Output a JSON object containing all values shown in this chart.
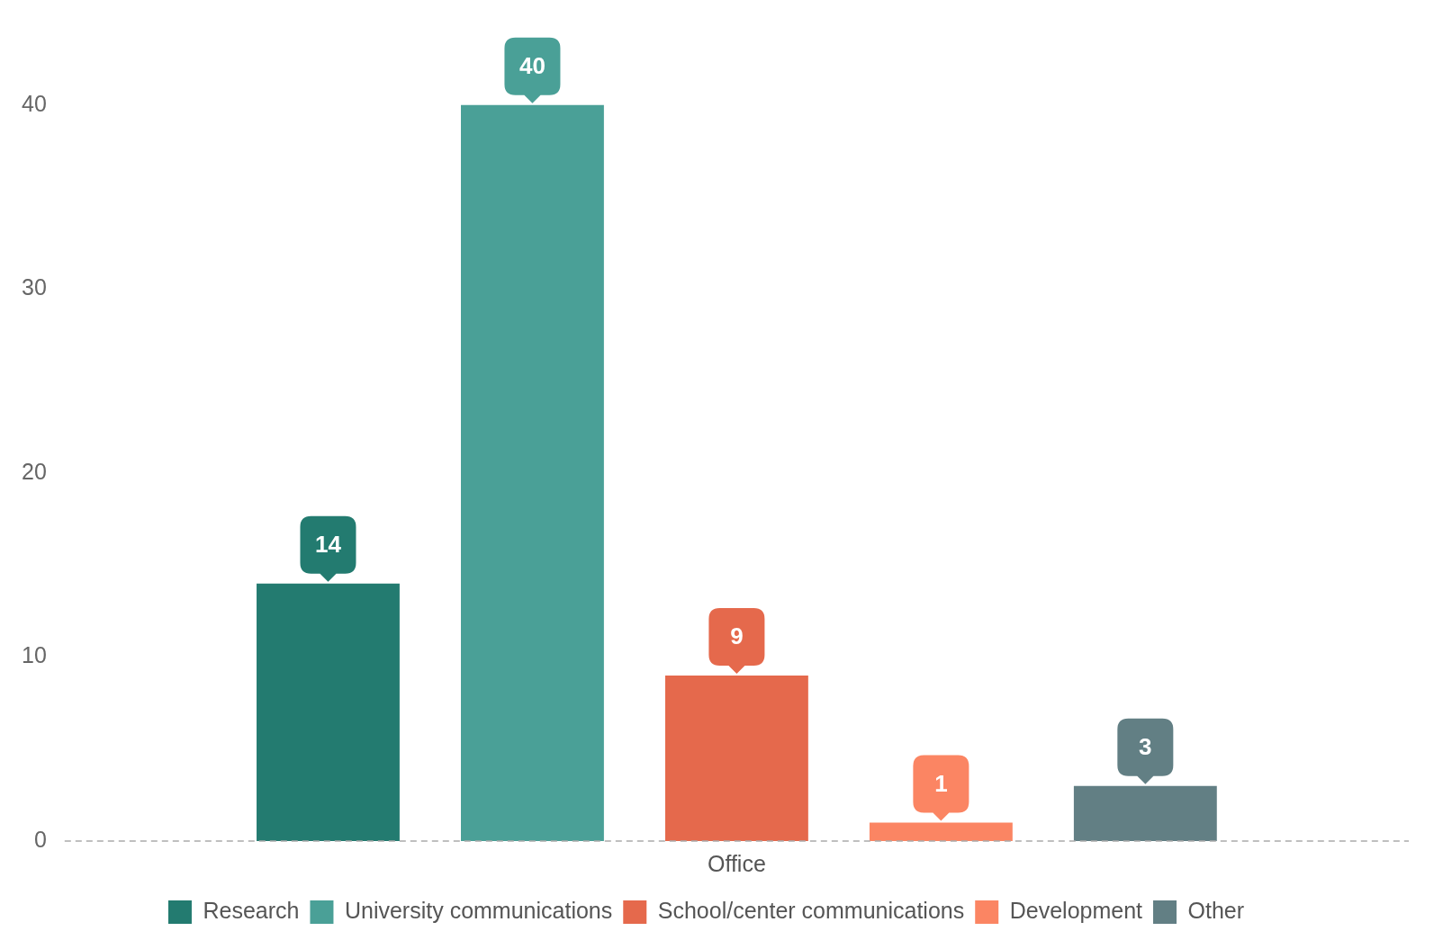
{
  "chart_data": {
    "type": "bar",
    "categories": [
      "Office"
    ],
    "series": [
      {
        "name": "Research",
        "color": "#237b70",
        "values": [
          14
        ]
      },
      {
        "name": "University communications",
        "color": "#4aa097",
        "values": [
          40
        ]
      },
      {
        "name": "School/center communications",
        "color": "#e5694c",
        "values": [
          9
        ]
      },
      {
        "name": "Development",
        "color": "#fb8563",
        "values": [
          1
        ]
      },
      {
        "name": "Other",
        "color": "#627f84",
        "values": [
          3
        ]
      }
    ],
    "ylim": [
      0,
      44
    ],
    "yticks": [
      0,
      10,
      20,
      30,
      40
    ],
    "grid": false,
    "legend": "bottom",
    "data_labels": true
  }
}
